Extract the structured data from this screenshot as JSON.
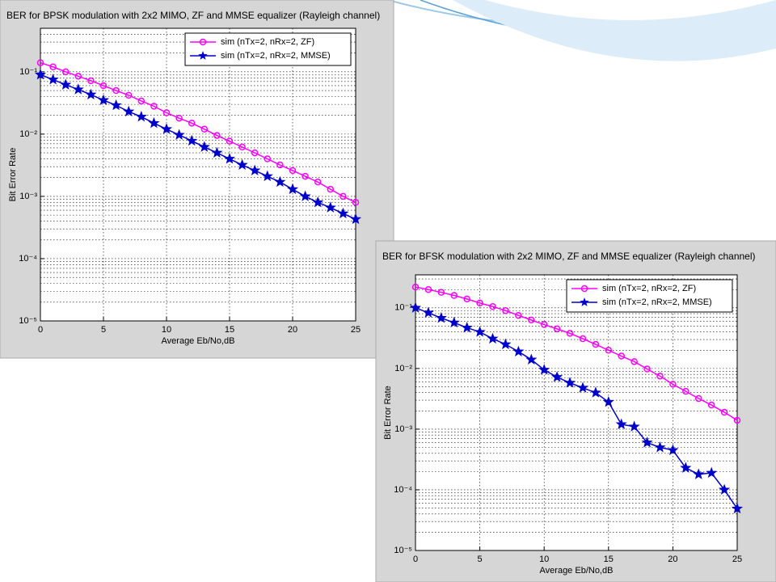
{
  "chart_data": [
    {
      "type": "line",
      "title": "BER for BPSK modulation with 2x2 MIMO,  ZF and MMSE equalizer (Rayleigh channel)",
      "xlabel": "Average Eb/No,dB",
      "ylabel": "Bit Error Rate",
      "x": [
        0,
        1,
        2,
        3,
        4,
        5,
        6,
        7,
        8,
        9,
        10,
        11,
        12,
        13,
        14,
        15,
        16,
        17,
        18,
        19,
        20,
        21,
        22,
        23,
        24,
        25
      ],
      "xlim": [
        0,
        25
      ],
      "xticks": [
        0,
        5,
        10,
        15,
        20,
        25
      ],
      "ylim": [
        1e-05,
        0.5
      ],
      "log_y": true,
      "grid": true,
      "legend": "upper right",
      "yticks": [
        {
          "value": 0.1,
          "label": "10⁻¹"
        },
        {
          "value": 0.01,
          "label": "10⁻²"
        },
        {
          "value": 0.001,
          "label": "10⁻³"
        },
        {
          "value": 0.0001,
          "label": "10⁻⁴"
        },
        {
          "value": 1e-05,
          "label": "10⁻⁵"
        }
      ],
      "series": [
        {
          "name": "sim (nTx=2, nRx=2, ZF)",
          "color": "#ff00ff",
          "marker": "circle",
          "values": [
            0.14,
            0.12,
            0.1,
            0.085,
            0.072,
            0.06,
            0.05,
            0.042,
            0.034,
            0.028,
            0.022,
            0.018,
            0.015,
            0.012,
            0.0095,
            0.0077,
            0.0062,
            0.005,
            0.004,
            0.0032,
            0.0026,
            0.0021,
            0.0017,
            0.0013,
            0.001,
            0.0008
          ]
        },
        {
          "name": "sim (nTx=2, nRx=2, MMSE)",
          "color": "#0000cc",
          "marker": "star",
          "values": [
            0.09,
            0.075,
            0.062,
            0.052,
            0.043,
            0.035,
            0.029,
            0.023,
            0.019,
            0.015,
            0.012,
            0.0097,
            0.0078,
            0.0062,
            0.005,
            0.004,
            0.0032,
            0.0026,
            0.0021,
            0.0017,
            0.0013,
            0.001,
            0.0008,
            0.00066,
            0.00053,
            0.00043
          ]
        }
      ]
    },
    {
      "type": "line",
      "title": "BER for BFSK modulation with 2x2 MIMO,  ZF and MMSE equalizer (Rayleigh channel)",
      "xlabel": "Average Eb/No,dB",
      "ylabel": "Bit Error Rate",
      "x": [
        0,
        1,
        2,
        3,
        4,
        5,
        6,
        7,
        8,
        9,
        10,
        11,
        12,
        13,
        14,
        15,
        16,
        17,
        18,
        19,
        20,
        21,
        22,
        23,
        24,
        25
      ],
      "xlim": [
        0,
        25
      ],
      "xticks": [
        0,
        5,
        10,
        15,
        20,
        25
      ],
      "ylim": [
        1e-05,
        0.35
      ],
      "log_y": true,
      "grid": true,
      "legend": "upper right",
      "yticks": [
        {
          "value": 0.1,
          "label": "10⁻¹"
        },
        {
          "value": 0.01,
          "label": "10⁻²"
        },
        {
          "value": 0.001,
          "label": "10⁻³"
        },
        {
          "value": 0.0001,
          "label": "10⁻⁴"
        },
        {
          "value": 1e-05,
          "label": "10⁻⁵"
        }
      ],
      "series": [
        {
          "name": "sim (nTx=2, nRx=2, ZF)",
          "color": "#ff00ff",
          "marker": "circle",
          "values": [
            0.22,
            0.2,
            0.18,
            0.16,
            0.14,
            0.12,
            0.105,
            0.09,
            0.075,
            0.063,
            0.053,
            0.045,
            0.038,
            0.031,
            0.025,
            0.02,
            0.016,
            0.013,
            0.0098,
            0.0075,
            0.0055,
            0.0042,
            0.0032,
            0.0025,
            0.0019,
            0.0014
          ]
        },
        {
          "name": "sim (nTx=2, nRx=2, MMSE)",
          "color": "#0000cc",
          "marker": "star",
          "values": [
            0.1,
            0.083,
            0.068,
            0.057,
            0.047,
            0.04,
            0.031,
            0.025,
            0.019,
            0.014,
            0.0095,
            0.0072,
            0.0058,
            0.0048,
            0.004,
            0.0028,
            0.0012,
            0.0011,
            0.0006,
            0.0005,
            0.00045,
            0.00023,
            0.00018,
            0.00019,
            0.0001,
            4.9e-05
          ]
        }
      ]
    }
  ]
}
